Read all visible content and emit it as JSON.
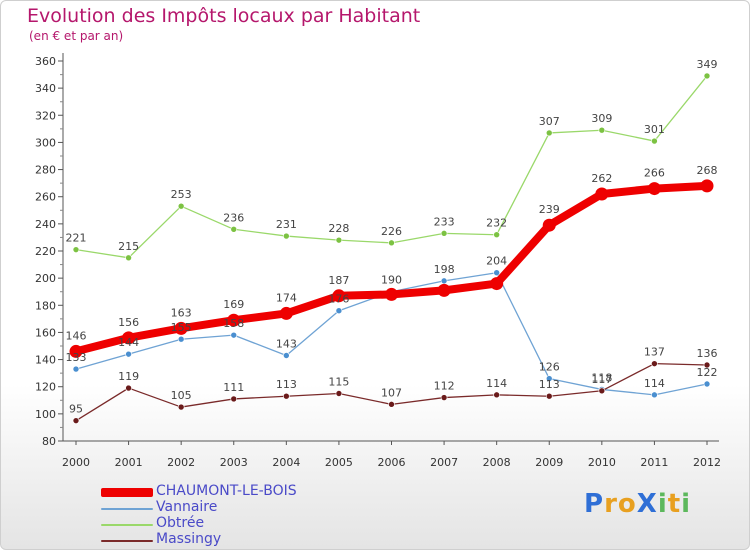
{
  "header": {
    "title": "Evolution des Impôts locaux par Habitant",
    "subtitle": "(en € et par an)"
  },
  "logo": {
    "text": "ProXiti",
    "letters": [
      "P",
      "r",
      "o",
      "X",
      "i",
      "t",
      "i"
    ],
    "colors": [
      "#2f6fd6",
      "#e8a020",
      "#e8a020",
      "#2f6fd6",
      "#5cb85c",
      "#e8a020",
      "#5cb85c"
    ]
  },
  "chart_data": {
    "type": "line",
    "title": "Evolution des Impôts locaux par Habitant",
    "subtitle": "(en € et par an)",
    "xlabel": "",
    "ylabel": "",
    "ylim": [
      80,
      360
    ],
    "y_ticks": [
      80,
      100,
      120,
      140,
      160,
      180,
      200,
      220,
      240,
      260,
      280,
      300,
      320,
      340,
      360
    ],
    "grid": false,
    "legend_position": "bottom-left",
    "x": [
      "2000",
      "2001",
      "2002",
      "2003",
      "2004",
      "2005",
      "2006",
      "2007",
      "2008",
      "2009",
      "2010",
      "2011",
      "2012"
    ],
    "series": [
      {
        "name": "CHAUMONT-LE-BOIS",
        "color": "#ee0000",
        "marker_color": "#ee0000",
        "emphasis": true,
        "values": [
          146,
          156,
          163,
          169,
          174,
          187,
          188,
          191,
          196,
          239,
          262,
          266,
          268
        ],
        "labels": [
          "146",
          "156",
          "163",
          "169",
          "174",
          "187",
          "",
          "",
          "",
          "239",
          "262",
          "266",
          "268"
        ]
      },
      {
        "name": "Vannaire",
        "color": "#6fa3d4",
        "marker_color": "#4a8fd0",
        "values": [
          133,
          144,
          155,
          158,
          143,
          176,
          190,
          198,
          204,
          126,
          118,
          114,
          122
        ],
        "labels": [
          "133",
          "144",
          "155",
          "158",
          "143",
          "176",
          "190",
          "198",
          "204",
          "126",
          "118",
          "114",
          "122"
        ]
      },
      {
        "name": "Obtrée",
        "color": "#9ad86a",
        "marker_color": "#7cc242",
        "values": [
          221,
          215,
          253,
          236,
          231,
          228,
          226,
          233,
          232,
          307,
          309,
          301,
          349
        ],
        "labels": [
          "221",
          "215",
          "253",
          "236",
          "231",
          "228",
          "226",
          "233",
          "232",
          "307",
          "309",
          "301",
          "349"
        ]
      },
      {
        "name": "Massingy",
        "color": "#7a2a2a",
        "marker_color": "#6a1a1a",
        "values": [
          95,
          119,
          105,
          111,
          113,
          115,
          107,
          112,
          114,
          113,
          117,
          137,
          136
        ],
        "labels": [
          "95",
          "119",
          "105",
          "111",
          "113",
          "115",
          "107",
          "112",
          "114",
          "113",
          "117",
          "137",
          "136"
        ]
      }
    ]
  }
}
